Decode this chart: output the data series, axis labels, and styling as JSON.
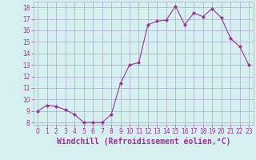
{
  "x": [
    0,
    1,
    2,
    3,
    4,
    5,
    6,
    7,
    8,
    9,
    10,
    11,
    12,
    13,
    14,
    15,
    16,
    17,
    18,
    19,
    20,
    21,
    22,
    23
  ],
  "y": [
    9.0,
    9.5,
    9.4,
    9.1,
    8.7,
    8.0,
    8.0,
    8.0,
    8.7,
    11.4,
    13.0,
    13.2,
    16.5,
    16.8,
    16.9,
    18.1,
    16.5,
    17.5,
    17.2,
    17.9,
    17.1,
    15.3,
    14.6,
    13.0
  ],
  "line_color": "#993399",
  "marker": "D",
  "marker_size": 2,
  "bg_color": "#d6f0f0",
  "grid_color": "#aaaacc",
  "xlabel": "Windchill (Refroidissement éolien,°C)",
  "ylim": [
    7.8,
    18.5
  ],
  "yticks": [
    8,
    9,
    10,
    11,
    12,
    13,
    14,
    15,
    16,
    17,
    18
  ],
  "xticks": [
    0,
    1,
    2,
    3,
    4,
    5,
    6,
    7,
    8,
    9,
    10,
    11,
    12,
    13,
    14,
    15,
    16,
    17,
    18,
    19,
    20,
    21,
    22,
    23
  ],
  "tick_color": "#993399",
  "label_color": "#993399",
  "tick_fontsize": 5.5,
  "xlabel_fontsize": 7.0
}
